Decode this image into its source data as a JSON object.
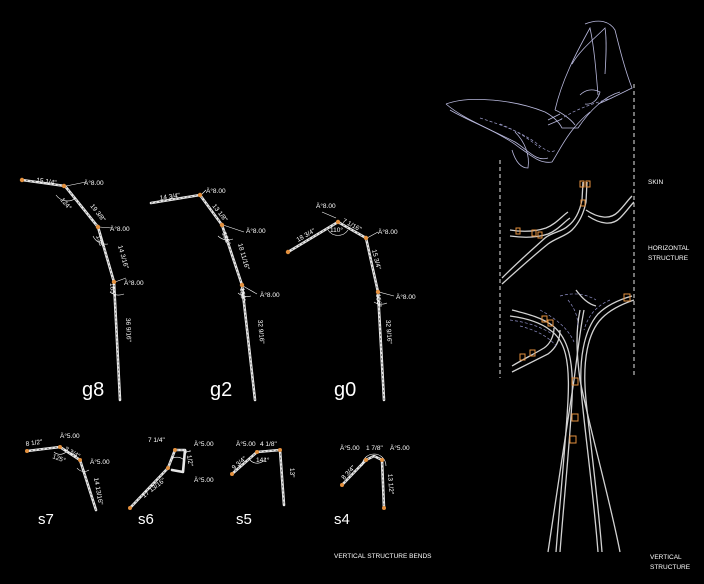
{
  "labels": {
    "skin": "SKIN",
    "horizontal_structure_1": "HORIZONTAL",
    "horizontal_structure_2": "STRUCTURE",
    "vertical_structure_1": "VERTICAL",
    "vertical_structure_2": "STRUCTURE",
    "vertical_structure_bends": "VERTICAL STRUCTURE BENDS"
  },
  "bends_large": [
    {
      "name": "g8",
      "dims": [
        "15 1/4\"",
        "Ä°8.00",
        "124°",
        "19 3/8\"",
        "Ä°8.00",
        "135°",
        "14 3/16\"",
        "Ä°8.00",
        "165°",
        "36 9/16\""
      ]
    },
    {
      "name": "g2",
      "dims": [
        "14 3/4\"",
        "Ä°8.00",
        "13 1/8\"",
        "Ä°8.00",
        "125°",
        "18 11/16\"",
        "Ä°8.00",
        "156°",
        "32 9/16\""
      ]
    },
    {
      "name": "g0",
      "dims": [
        "Ä°8.00",
        "7 1/16\"",
        "18 3/4\"",
        "110°",
        "Ä°8.00",
        "15 3/4\"",
        "Ä°8.00",
        "156°",
        "32 9/16\""
      ]
    }
  ],
  "bends_small": [
    {
      "name": "s7",
      "dims": [
        "8 1/2\"",
        "Ä°5.00",
        "3 3/4\"",
        "125°",
        "Ä°5.00",
        "14 13/16\""
      ]
    },
    {
      "name": "s6",
      "dims": [
        "7 1/4\"",
        "Ä°5.00",
        "1 1/2\"",
        "Ä°5.00",
        "17 13/16\""
      ]
    },
    {
      "name": "s5",
      "dims": [
        "Ä°5.00",
        "4 1/8\"",
        "9 3/4\"",
        "141°",
        "13\""
      ]
    },
    {
      "name": "s4",
      "dims": [
        "Ä°5.00",
        "1 7/8\"",
        "Ä°5.00",
        "8 3/4\"",
        "13 1/2\""
      ]
    }
  ],
  "colors": {
    "background": "#000000",
    "tube": "#e6e6e6",
    "joint": "#e3903e",
    "skin_outline": "#b8b8dc"
  }
}
